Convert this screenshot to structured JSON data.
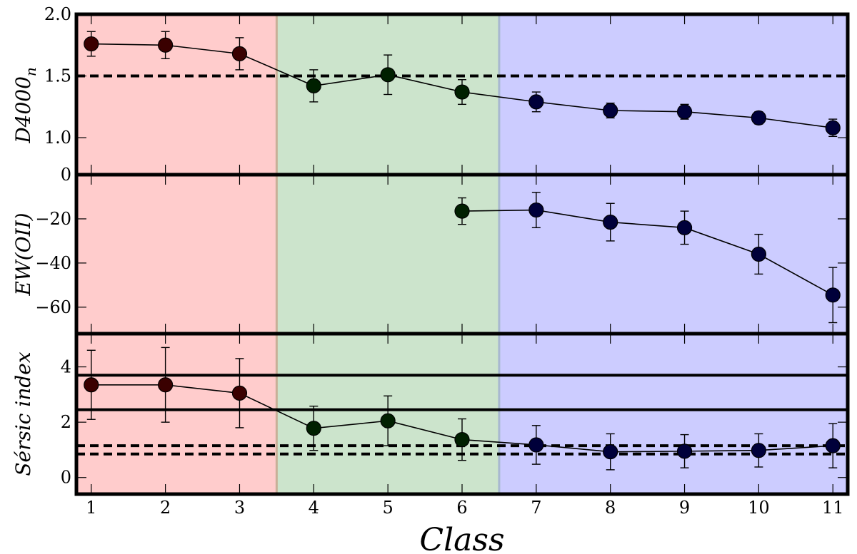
{
  "chart_data": {
    "type": "line",
    "x": [
      1,
      2,
      3,
      4,
      5,
      6,
      7,
      8,
      9,
      10,
      11
    ],
    "x_ticks": [
      "1",
      "2",
      "3",
      "4",
      "5",
      "6",
      "7",
      "8",
      "9",
      "10",
      "11"
    ],
    "xlabel": "Class",
    "xlim": [
      0.8,
      11.2
    ],
    "regions": [
      {
        "from": 0.8,
        "to": 3.5,
        "color": "#ffcccc"
      },
      {
        "from": 3.5,
        "to": 6.5,
        "color": "#cce4cc"
      },
      {
        "from": 6.5,
        "to": 11.2,
        "color": "#ccccff"
      }
    ],
    "marker_colors": [
      "#3a0000",
      "#3a0000",
      "#3a0000",
      "#002000",
      "#002000",
      "#002000",
      "#00003a",
      "#00003a",
      "#00003a",
      "#00003a",
      "#00003a"
    ],
    "panels": [
      {
        "ylabel": "D4000",
        "ylabel_sub": "n",
        "ylim": [
          0.7,
          2.0
        ],
        "y_ticks": [
          1.0,
          1.5,
          2.0
        ],
        "y_tick_labels": [
          "1.0",
          "1.5",
          "2.0"
        ],
        "bottom_label": "0",
        "x": [
          1,
          2,
          3,
          4,
          5,
          6,
          7,
          8,
          9,
          10,
          11
        ],
        "values": [
          1.76,
          1.75,
          1.68,
          1.42,
          1.51,
          1.37,
          1.29,
          1.22,
          1.21,
          1.16,
          1.08
        ],
        "err": [
          0.1,
          0.11,
          0.13,
          0.13,
          0.16,
          0.1,
          0.08,
          0.06,
          0.06,
          0.05,
          0.07
        ],
        "hlines": [
          {
            "y": 1.5,
            "style": "dashed"
          }
        ]
      },
      {
        "ylabel": "EW(OII)",
        "ylim": [
          -72,
          0
        ],
        "y_ticks": [
          -20,
          -40,
          -60
        ],
        "y_tick_labels": [
          "−20",
          "−40",
          "−60"
        ],
        "x": [
          6,
          7,
          8,
          9,
          10,
          11
        ],
        "values": [
          -16.5,
          -16.0,
          -21.5,
          -24.0,
          -36.0,
          -54.5
        ],
        "err": [
          6.0,
          8.0,
          8.5,
          7.5,
          9.0,
          12.5
        ],
        "hlines": []
      },
      {
        "ylabel": "Sérsic index",
        "ylim": [
          -0.6,
          5.2
        ],
        "y_ticks": [
          0,
          2,
          4
        ],
        "y_tick_labels": [
          "0",
          "2",
          "4"
        ],
        "x": [
          1,
          2,
          3,
          4,
          5,
          6,
          7,
          8,
          9,
          10,
          11
        ],
        "values": [
          3.35,
          3.35,
          3.05,
          1.78,
          2.05,
          1.37,
          1.18,
          0.93,
          0.95,
          0.98,
          1.15
        ],
        "err": [
          1.25,
          1.35,
          1.25,
          0.8,
          0.9,
          0.75,
          0.7,
          0.65,
          0.6,
          0.6,
          0.8
        ],
        "hlines": [
          {
            "y": 3.7,
            "style": "solid"
          },
          {
            "y": 2.45,
            "style": "solid"
          },
          {
            "y": 1.15,
            "style": "dashed"
          },
          {
            "y": 0.85,
            "style": "dashed"
          }
        ]
      }
    ]
  }
}
